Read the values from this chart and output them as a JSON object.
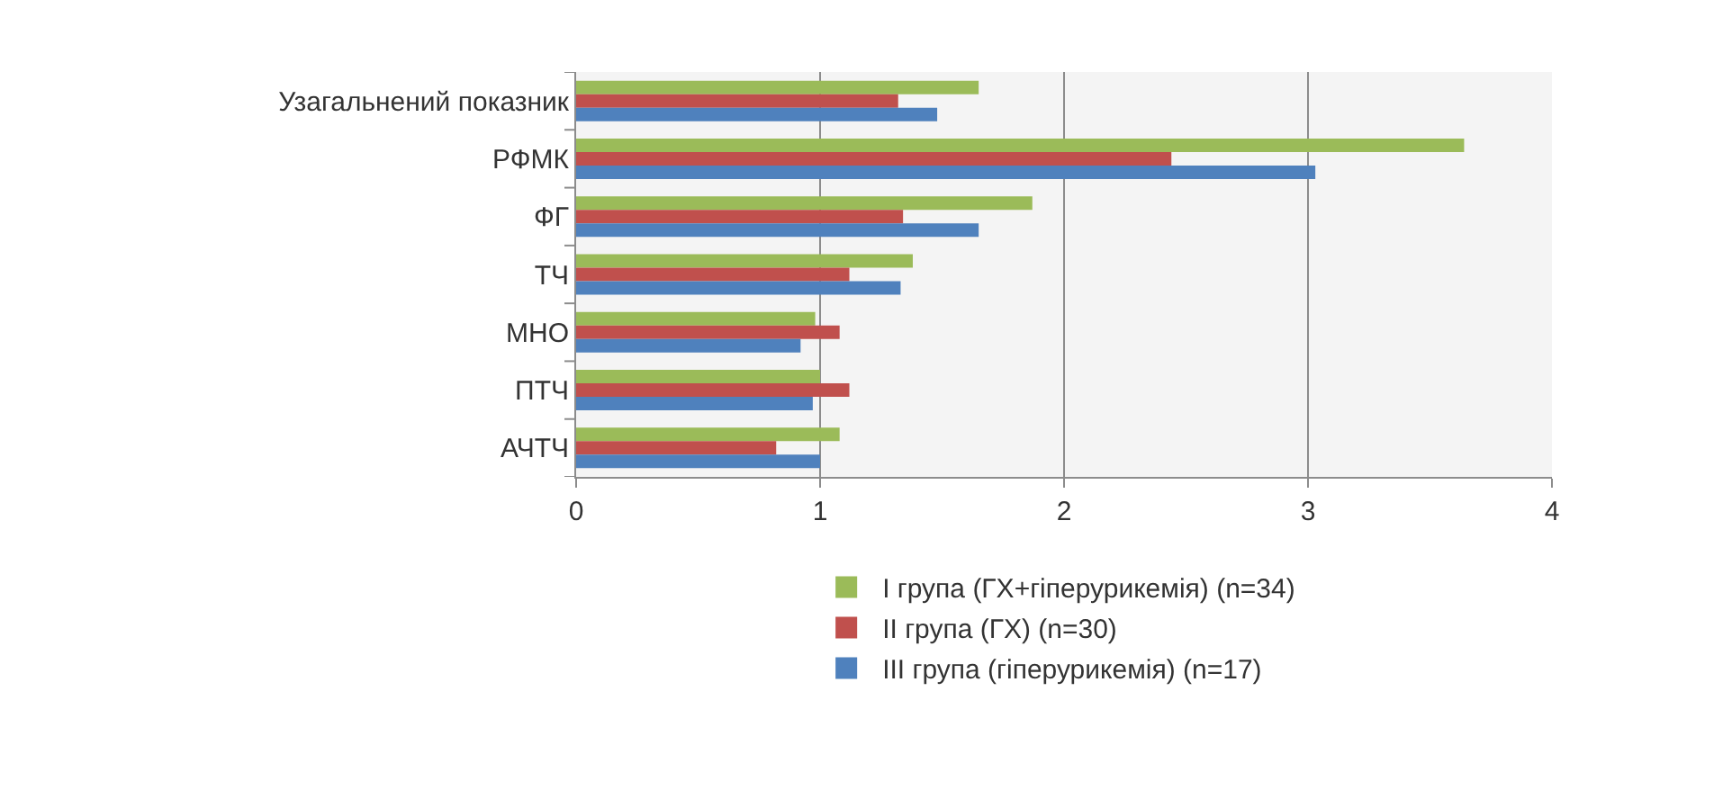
{
  "chart_data": {
    "type": "bar",
    "orientation": "horizontal",
    "categories": [
      "Узагальнений показник",
      "РФМК",
      "ФГ",
      "ТЧ",
      "МНО",
      "ПТЧ",
      "АЧТЧ"
    ],
    "series": [
      {
        "name": "I група (ГХ+гіперурикемія) (n=34)",
        "color": "#9bbb59",
        "values": [
          1.65,
          3.64,
          1.87,
          1.38,
          0.98,
          1.0,
          1.08
        ]
      },
      {
        "name": "II група (ГХ) (n=30)",
        "color": "#c0504d",
        "values": [
          1.32,
          2.44,
          1.34,
          1.12,
          1.08,
          1.12,
          0.82
        ]
      },
      {
        "name": "III група (гіперурикемія) (n=17)",
        "color": "#4f81bd",
        "values": [
          1.48,
          3.03,
          1.65,
          1.33,
          0.92,
          0.97,
          1.0
        ]
      }
    ],
    "xlim": [
      0,
      4
    ],
    "xticks": [
      0,
      1,
      2,
      3,
      4
    ],
    "grid": "x",
    "legend": "bottom"
  }
}
